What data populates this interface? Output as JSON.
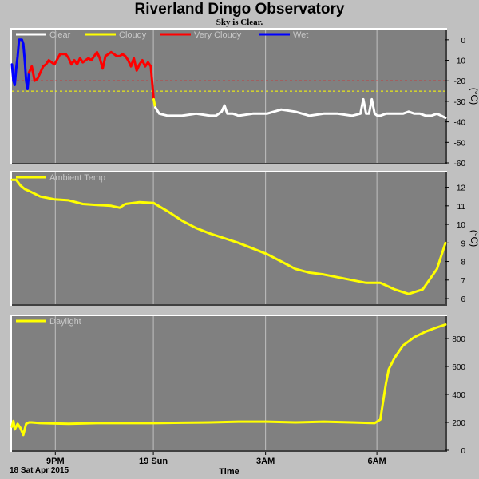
{
  "title": "Riverland Dingo Observatory",
  "subtitle": "Sky is Clear.",
  "footer_date": "18 Sat Apr 2015",
  "colors": {
    "panel": "#808080",
    "grid": "#c0c0c0",
    "sky_clear": "#ffffff",
    "sky_cloudy": "#ffff00",
    "sky_very_cloudy": "#ff0000",
    "sky_wet": "#0000ff",
    "temp": "#ffff00",
    "daylight": "#ffff00"
  },
  "chart_data": [
    {
      "type": "line",
      "panel": "sky",
      "ylabel": "(°C)",
      "ylim": [
        -60,
        5
      ],
      "yticks": [
        0,
        -10,
        -20,
        -30,
        -40,
        -50,
        -60
      ],
      "x_unit": "hours since 18:00 18 Apr 2015",
      "xlim": [
        0,
        15.3
      ],
      "legend": [
        "Clear",
        "Cloudy",
        "Very Cloudy",
        "Wet"
      ],
      "thresholds": [
        {
          "y": -20,
          "color": "#ff0000"
        },
        {
          "y": -25,
          "color": "#ffff00"
        }
      ],
      "series": [
        {
          "name": "Wet",
          "color": "#0000ff",
          "x": [
            0.0,
            0.05,
            0.1,
            0.15,
            0.2,
            0.25,
            0.3,
            0.35,
            0.4,
            0.45,
            0.5,
            0.55,
            0.6
          ],
          "y": [
            -12,
            -20,
            -22,
            -14,
            -8,
            0,
            0,
            0,
            -2,
            -10,
            -20,
            -24,
            -16
          ]
        },
        {
          "name": "Very Cloudy",
          "color": "#ff0000",
          "x": [
            0.6,
            0.7,
            0.8,
            0.9,
            1.0,
            1.1,
            1.2,
            1.3,
            1.5,
            1.7,
            1.9,
            2.0,
            2.1,
            2.2,
            2.3,
            2.4,
            2.5,
            2.6,
            2.7,
            2.8,
            3.0,
            3.1,
            3.2,
            3.3,
            3.4,
            3.5,
            3.6,
            3.7,
            3.8,
            3.9,
            4.0,
            4.1,
            4.2,
            4.3,
            4.4,
            4.5,
            4.6,
            4.7,
            4.8,
            4.9,
            5.0
          ],
          "y": [
            -16,
            -13,
            -20,
            -19,
            -16,
            -13,
            -12,
            -10,
            -12,
            -7,
            -7,
            -9,
            -12,
            -10,
            -12,
            -9,
            -11,
            -10,
            -9,
            -10,
            -6,
            -9,
            -14,
            -8,
            -7,
            -6,
            -7,
            -8,
            -8,
            -7,
            -8,
            -10,
            -13,
            -9,
            -15,
            -12,
            -10,
            -13,
            -11,
            -13,
            -29
          ]
        },
        {
          "name": "Cloudy",
          "color": "#ffff00",
          "x": [
            5.0,
            5.03,
            5.06
          ],
          "y": [
            -29,
            -31,
            -33
          ]
        },
        {
          "name": "Clear",
          "color": "#ffffff",
          "x": [
            5.06,
            5.2,
            5.5,
            6.0,
            6.5,
            7.0,
            7.2,
            7.4,
            7.5,
            7.6,
            7.8,
            8.0,
            8.5,
            9.0,
            9.5,
            10.0,
            10.5,
            11.0,
            11.5,
            12.0,
            12.3,
            12.4,
            12.5,
            12.6,
            12.7,
            12.8,
            12.9,
            13.0,
            13.2,
            13.5,
            13.8,
            14.0,
            14.2,
            14.4,
            14.6,
            14.8,
            15.0,
            15.3
          ],
          "y": [
            -33,
            -36,
            -37,
            -37,
            -36,
            -37,
            -37,
            -35,
            -32,
            -36,
            -36,
            -37,
            -36,
            -36,
            -34,
            -35,
            -37,
            -36,
            -36,
            -37,
            -36,
            -29,
            -36,
            -36,
            -29,
            -36,
            -37,
            -37,
            -36,
            -36,
            -36,
            -35,
            -36,
            -36,
            -37,
            -37,
            -36,
            -38
          ]
        }
      ]
    },
    {
      "type": "line",
      "panel": "ambient",
      "ylabel": "(°C)",
      "ylim": [
        5.7,
        12.8
      ],
      "yticks": [
        6,
        7,
        8,
        9,
        10,
        11,
        12
      ],
      "x_unit": "hours since 18:00 18 Apr 2015",
      "xlim": [
        0,
        15.3
      ],
      "legend": [
        "Ambient Temp"
      ],
      "series": [
        {
          "name": "Ambient Temp",
          "color": "#ffff00",
          "x": [
            0,
            0.15,
            0.3,
            0.45,
            0.6,
            1.0,
            1.5,
            2.0,
            2.5,
            3.0,
            3.5,
            3.8,
            4.0,
            4.5,
            5.0,
            5.5,
            6.0,
            6.5,
            7.0,
            7.5,
            8.0,
            8.5,
            9.0,
            9.5,
            10.0,
            10.5,
            11.0,
            11.5,
            12.0,
            12.5,
            13.0,
            13.5,
            14.0,
            14.5,
            15.0,
            15.3
          ],
          "y": [
            12.4,
            12.4,
            12.1,
            11.9,
            11.8,
            11.5,
            11.35,
            11.3,
            11.1,
            11.05,
            11.0,
            10.9,
            11.1,
            11.2,
            11.15,
            10.7,
            10.2,
            9.8,
            9.5,
            9.25,
            9.0,
            8.7,
            8.4,
            8.0,
            7.6,
            7.4,
            7.3,
            7.15,
            7.0,
            6.85,
            6.85,
            6.5,
            6.25,
            6.5,
            7.6,
            9.0
          ]
        }
      ]
    },
    {
      "type": "line",
      "panel": "daylight",
      "ylim": [
        0,
        960
      ],
      "yticks": [
        0,
        200,
        400,
        600,
        800
      ],
      "x_unit": "hours since 18:00 18 Apr 2015",
      "xlim": [
        0,
        15.3
      ],
      "legend": [
        "Daylight"
      ],
      "xticks": [
        {
          "x": 1.53,
          "label": "9PM"
        },
        {
          "x": 4.99,
          "label": "19 Sun"
        },
        {
          "x": 8.95,
          "label": "3AM"
        },
        {
          "x": 12.88,
          "label": "6AM"
        }
      ],
      "xlabel": "Time",
      "series": [
        {
          "name": "Daylight",
          "color": "#ffff00",
          "x": [
            0,
            0.05,
            0.1,
            0.2,
            0.3,
            0.4,
            0.5,
            0.6,
            0.7,
            1.0,
            2.0,
            3.0,
            4.0,
            5.0,
            6.0,
            7.0,
            8.0,
            9.0,
            10.0,
            11.0,
            12.0,
            12.8,
            13.0,
            13.1,
            13.2,
            13.3,
            13.5,
            13.8,
            14.2,
            14.6,
            15.0,
            15.3
          ],
          "y": [
            170,
            210,
            150,
            190,
            160,
            110,
            190,
            200,
            200,
            195,
            190,
            195,
            195,
            195,
            198,
            200,
            205,
            205,
            200,
            205,
            200,
            195,
            220,
            350,
            480,
            580,
            660,
            750,
            810,
            850,
            880,
            900
          ]
        }
      ]
    }
  ]
}
